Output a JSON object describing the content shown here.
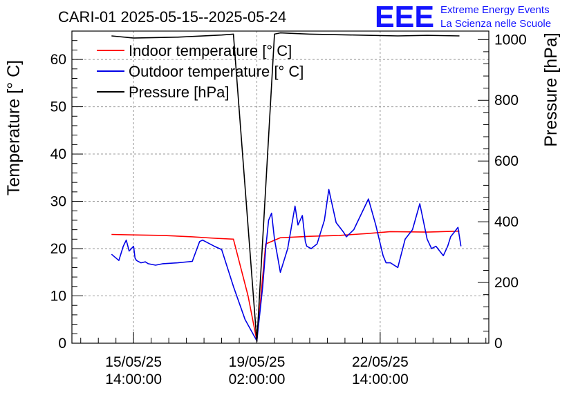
{
  "chart_data": {
    "type": "line",
    "title": "CARI-01 2025-05-15--2025-05-24",
    "ylabel": "Temperature [° C]",
    "y2label": "Pressure [hPa]",
    "xlabel": "",
    "xlim": [
      -42,
      242
    ],
    "ylim": [
      0,
      66
    ],
    "y2lim": [
      0,
      1028
    ],
    "x_unit": "hours since 2025-05-15 14:00:00",
    "grid": true,
    "legend_position": "top-left",
    "x_ticks": [
      {
        "x": 0,
        "date": "15/05/25",
        "time": "14:00:00"
      },
      {
        "x": 84,
        "date": "19/05/25",
        "time": "02:00:00"
      },
      {
        "x": 168,
        "date": "22/05/25",
        "time": "14:00:00"
      }
    ],
    "y_ticks": [
      0,
      10,
      20,
      30,
      40,
      50,
      60
    ],
    "y2_ticks": [
      0,
      200,
      400,
      600,
      800,
      1000
    ],
    "series": [
      {
        "name": "Indoor temperature [° C]",
        "axis": "left",
        "color": "#ff0000",
        "x": [
          -15,
          0,
          20,
          40,
          55,
          68,
          78,
          84,
          90,
          100,
          120,
          140,
          160,
          175,
          200,
          222
        ],
        "values": [
          23.0,
          22.9,
          22.8,
          22.5,
          22.2,
          22.0,
          10.0,
          0.5,
          21.0,
          22.3,
          22.6,
          22.8,
          23.2,
          23.6,
          23.5,
          23.7
        ]
      },
      {
        "name": "Outdoor temperature [° C]",
        "axis": "left",
        "color": "#0000e6",
        "x": [
          -15,
          -10,
          -7,
          -5,
          -3,
          0,
          1,
          2,
          5,
          8,
          10,
          15,
          20,
          30,
          40,
          45,
          47,
          55,
          60,
          68,
          76,
          84,
          88,
          90,
          92,
          94,
          96,
          100,
          105,
          110,
          112,
          115,
          117,
          118,
          121,
          123,
          125,
          130,
          133,
          138,
          143,
          145,
          150,
          160,
          165,
          170,
          172,
          175,
          180,
          185,
          190,
          195,
          200,
          203,
          206,
          211,
          214,
          216,
          221,
          223
        ],
        "values": [
          18.8,
          17.5,
          20.5,
          21.8,
          19.5,
          20.5,
          18.0,
          17.5,
          17.0,
          17.2,
          16.8,
          16.5,
          16.8,
          17.0,
          17.3,
          21.5,
          21.8,
          20.5,
          19.8,
          12.0,
          5.0,
          0.5,
          12.0,
          20.0,
          26.0,
          27.5,
          22.0,
          15.0,
          20.0,
          29.0,
          25.0,
          27.0,
          21.5,
          20.5,
          20.0,
          20.5,
          21.0,
          26.0,
          32.5,
          25.5,
          23.5,
          22.5,
          24.0,
          30.5,
          25.0,
          18.5,
          17.0,
          17.0,
          16.0,
          22.0,
          24.0,
          29.5,
          22.0,
          20.0,
          20.5,
          18.5,
          20.5,
          22.5,
          24.5,
          20.5
        ]
      },
      {
        "name": "Pressure [hPa]",
        "axis": "right",
        "color": "#000000",
        "x": [
          -15,
          0,
          30,
          60,
          68,
          84,
          96,
          100,
          120,
          150,
          180,
          200,
          222
        ],
        "values": [
          1012,
          1005,
          1008,
          1015,
          1018,
          5,
          1018,
          1022,
          1018,
          1015,
          1012,
          1014,
          1012
        ]
      }
    ]
  },
  "logo": {
    "mark": "EEE",
    "line1": "Extreme Energy Events",
    "line2": "La Scienza nelle Scuole"
  }
}
